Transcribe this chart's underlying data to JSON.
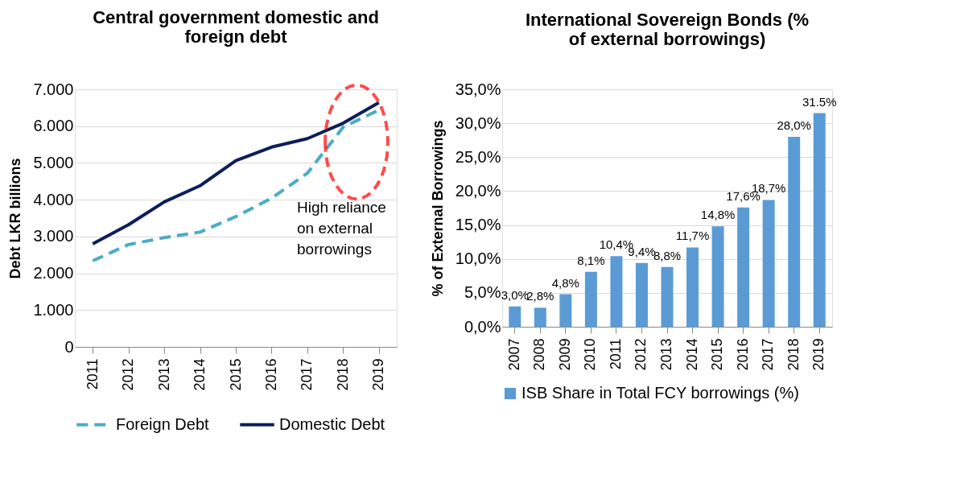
{
  "chart_data": [
    {
      "type": "line",
      "title": "Central government domestic and\nforeign debt",
      "ylabel": "Debt LKR billions",
      "categories": [
        "2011",
        "2012",
        "2013",
        "2014",
        "2015",
        "2016",
        "2017",
        "2018",
        "2019"
      ],
      "series": [
        {
          "name": "Foreign Debt",
          "color": "#4bacc6",
          "line_style": "dashed",
          "values": [
            2340,
            2780,
            2970,
            3120,
            3540,
            4040,
            4720,
            5970,
            6440
          ]
        },
        {
          "name": "Domestic Debt",
          "color": "#0c1f5a",
          "line_style": "solid",
          "values": [
            2800,
            3320,
            3940,
            4380,
            5060,
            5430,
            5660,
            6080,
            6640
          ]
        }
      ],
      "ylim": [
        0,
        7000
      ],
      "yticks": [
        0,
        {
          "value": 1000,
          "label": "1.000"
        },
        {
          "value": 2000,
          "label": "2.000"
        },
        {
          "value": 3000,
          "label": "3.000"
        },
        {
          "value": 4000,
          "label": "4.000"
        },
        {
          "value": 5000,
          "label": "5.000"
        },
        {
          "value": 6000,
          "label": "6.000"
        },
        {
          "value": 7000,
          "label": "7.000"
        }
      ],
      "annotations": [
        "High reliance\non external\nborrowings"
      ],
      "grid": "y",
      "legend": "bottom",
      "marker": "none"
    },
    {
      "type": "bar",
      "title": "International Sovereign Bonds (%\nof external borrowings)",
      "ylabel": "% of External Borrowings",
      "categories": [
        "2007",
        "2008",
        "2009",
        "2010",
        "2011",
        "2012",
        "2013",
        "2014",
        "2015",
        "2016",
        "2017",
        "2018",
        "2019"
      ],
      "series": [
        {
          "name": "ISB Share in Total FCY borrowings (%)",
          "color": "#5b9bd5",
          "values": [
            3.0,
            2.8,
            4.8,
            8.1,
            10.4,
            9.4,
            8.8,
            11.7,
            14.8,
            17.6,
            18.7,
            28.0,
            31.5
          ],
          "value_labels": [
            "3,0%",
            "2,8%",
            "4,8%",
            "8,1%",
            "10,4%",
            "9,4%",
            "8,8%",
            "11,7%",
            "14,8%",
            "17,6%",
            "18,7%",
            "28,0%",
            "31.5%"
          ]
        }
      ],
      "ylim": [
        0,
        35
      ],
      "yticks": [
        {
          "value": 0,
          "label": "0,0%"
        },
        {
          "value": 5,
          "label": "5,0%"
        },
        {
          "value": 10,
          "label": "10,0%"
        },
        {
          "value": 15,
          "label": "15,0%"
        },
        {
          "value": 20,
          "label": "20,0%"
        },
        {
          "value": 25,
          "label": "25,0%"
        },
        {
          "value": 30,
          "label": "30,0%"
        },
        {
          "value": 35,
          "label": "35,0%"
        }
      ],
      "grid": "y",
      "legend": "bottom"
    }
  ]
}
